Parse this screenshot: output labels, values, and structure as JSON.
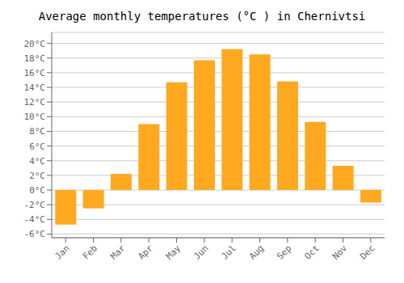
{
  "chart_data": {
    "type": "bar",
    "title": "Average monthly temperatures (°C ) in Chernivtsi",
    "categories": [
      "Jan",
      "Feb",
      "Mar",
      "Apr",
      "May",
      "Jun",
      "Jul",
      "Aug",
      "Sep",
      "Oct",
      "Nov",
      "Dec"
    ],
    "values": [
      -4.7,
      -2.5,
      2.2,
      9.0,
      14.7,
      17.7,
      19.2,
      18.5,
      14.8,
      9.3,
      3.3,
      -1.7
    ],
    "color": "#FFA820",
    "ylim": [
      -6.5,
      21.5
    ],
    "yticks": [
      {
        "value": -6,
        "label": "-6°C"
      },
      {
        "value": -4,
        "label": "-4°C"
      },
      {
        "value": -2,
        "label": "-2°C"
      },
      {
        "value": 0,
        "label": "0°C"
      },
      {
        "value": 2,
        "label": "2°C"
      },
      {
        "value": 4,
        "label": "4°C"
      },
      {
        "value": 6,
        "label": "6°C"
      },
      {
        "value": 8,
        "label": "8°C"
      },
      {
        "value": 10,
        "label": "10°C"
      },
      {
        "value": 12,
        "label": "12°C"
      },
      {
        "value": 14,
        "label": "14°C"
      },
      {
        "value": 16,
        "label": "16°C"
      },
      {
        "value": 18,
        "label": "18°C"
      },
      {
        "value": 20,
        "label": "20°C"
      }
    ],
    "grid": true
  }
}
